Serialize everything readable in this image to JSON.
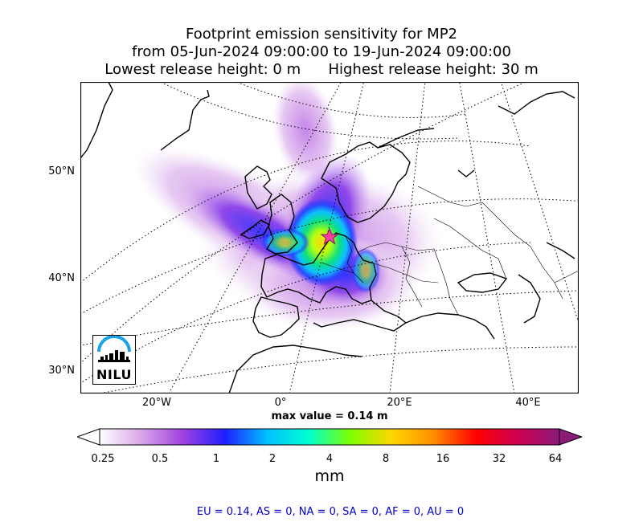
{
  "title": {
    "line1": "Footprint emission sensitivity for MP2",
    "line2": "from 05-Jun-2024 09:00:00 to 19-Jun-2024 09:00:00",
    "line3": "Lowest release height: 0 m      Highest release height: 30 m"
  },
  "map": {
    "lat_labels": [
      "50°N",
      "40°N",
      "30°N"
    ],
    "lon_labels": [
      "20°W",
      "0°",
      "20°E",
      "40°E"
    ],
    "release_marker": "star-icon",
    "logo_text": "NILU"
  },
  "max_value_label": "max value = 0.14 m",
  "colorbar": {
    "ticks": [
      "0.25",
      "0.5",
      "1",
      "2",
      "4",
      "8",
      "16",
      "32",
      "64"
    ],
    "unit": "mm",
    "colors": [
      "#ffffff",
      "#d9a6e8",
      "#9f3fe0",
      "#1f1fff",
      "#00bfff",
      "#00ffd0",
      "#7fff00",
      "#ffd700",
      "#ff8c00",
      "#ff0000",
      "#cc0050",
      "#8b1a7a"
    ]
  },
  "totals": "EU = 0.14,  AS = 0,  NA = 0,  SA = 0,  AF = 0,  AU = 0"
}
